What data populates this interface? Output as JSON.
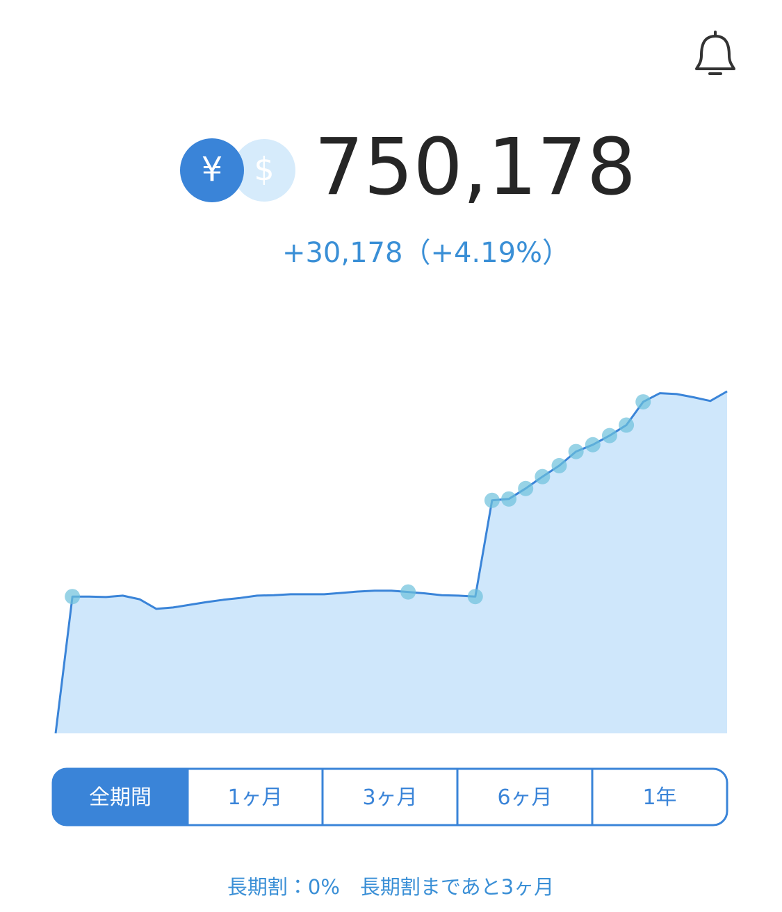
{
  "summary": {
    "currency_yen": "¥",
    "currency_dollar": "$",
    "total": "750,178",
    "change": "+30,178（+4.19%）"
  },
  "chart_data": {
    "type": "area",
    "categories": [
      null,
      null,
      null,
      null,
      null,
      null,
      null,
      null,
      null,
      null,
      null,
      null,
      null,
      null,
      null,
      null,
      null,
      null,
      null,
      null,
      null,
      null,
      null,
      null,
      null,
      null,
      null,
      null,
      null,
      null,
      null,
      null,
      null,
      null,
      null,
      null,
      null,
      null,
      null,
      null,
      null
    ],
    "values": [
      0,
      300000,
      300000,
      299000,
      302000,
      294000,
      273000,
      276000,
      282000,
      288000,
      293000,
      297000,
      302000,
      303000,
      305000,
      305000,
      305000,
      308000,
      311000,
      313000,
      313000,
      310000,
      307000,
      303000,
      302000,
      300000,
      511000,
      514000,
      537000,
      563000,
      587000,
      618000,
      633000,
      653000,
      676000,
      727000,
      746000,
      744000,
      737000,
      729000,
      750000
    ],
    "markers": [
      null,
      300000,
      null,
      null,
      null,
      null,
      null,
      null,
      null,
      null,
      null,
      null,
      null,
      null,
      null,
      null,
      null,
      null,
      null,
      null,
      null,
      310000,
      null,
      null,
      null,
      300000,
      511000,
      514000,
      537000,
      563000,
      587000,
      618000,
      633000,
      653000,
      676000,
      727000,
      null,
      null,
      null,
      null,
      null
    ],
    "ylim": [
      0,
      1000000
    ],
    "color": "#3a84d8",
    "fill_color": "#cfe7fb",
    "marker_color": "#6cc0dc"
  },
  "period_tabs": [
    "全期間",
    "1ヶ月",
    "3ヶ月",
    "6ヶ月",
    "1年"
  ],
  "active_tab": 0,
  "footer": "長期割：0%　長期割まであと3ヶ月"
}
